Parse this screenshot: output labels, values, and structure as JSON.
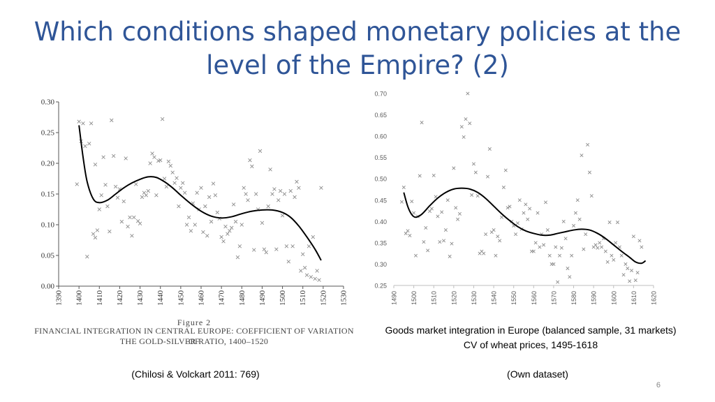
{
  "slide": {
    "title_line1": "Which conditions shaped monetary policies at the",
    "title_line2": "level of the Empire? (2)",
    "page_number": "6"
  },
  "left_figure": {
    "figure_number": "Figure 2",
    "caption_line1": "FINANCIAL INTEGRATION IN CENTRAL EUROPE: COEFFICIENT OF VARIATION OF",
    "caption_line2": "THE GOLD-SILVER RATIO, 1400–1520",
    "source": "(Chilosi & Volckart 2011: 769)"
  },
  "right_figure": {
    "caption_line1": "Goods market integration in Europe (balanced sample, 31 markets)",
    "caption_line2": "CV of wheat prices, 1495-1618",
    "source": "(Own dataset)"
  },
  "colors": {
    "title": "#2F5597",
    "curve": "#000000",
    "markers": "#8c8c8c"
  },
  "chart_data": [
    {
      "type": "scatter",
      "title": "Financial integration in Central Europe: coefficient of variation of the gold-silver ratio, 1400–1520",
      "xlim": [
        1390,
        1530
      ],
      "ylim": [
        0.0,
        0.3
      ],
      "xticks": [
        "1390",
        "1400",
        "1410",
        "1420",
        "1430",
        "1440",
        "1450",
        "1460",
        "1470",
        "1480",
        "1490",
        "1500",
        "1510",
        "1520",
        "1530"
      ],
      "yticks": [
        "0.00",
        "0.05",
        "0.10",
        "0.15",
        "0.20",
        "0.25",
        "0.30"
      ],
      "marker": "x",
      "points": [
        [
          1399,
          0.166
        ],
        [
          1400,
          0.268
        ],
        [
          1401,
          0.236
        ],
        [
          1402,
          0.265
        ],
        [
          1403,
          0.228
        ],
        [
          1404,
          0.048
        ],
        [
          1405,
          0.232
        ],
        [
          1406,
          0.265
        ],
        [
          1407,
          0.085
        ],
        [
          1408,
          0.079
        ],
        [
          1408,
          0.198
        ],
        [
          1409,
          0.091
        ],
        [
          1410,
          0.125
        ],
        [
          1411,
          0.148
        ],
        [
          1412,
          0.21
        ],
        [
          1413,
          0.165
        ],
        [
          1414,
          0.13
        ],
        [
          1415,
          0.089
        ],
        [
          1416,
          0.27
        ],
        [
          1417,
          0.212
        ],
        [
          1418,
          0.162
        ],
        [
          1419,
          0.144
        ],
        [
          1420,
          0.158
        ],
        [
          1421,
          0.105
        ],
        [
          1422,
          0.138
        ],
        [
          1423,
          0.208
        ],
        [
          1424,
          0.097
        ],
        [
          1425,
          0.112
        ],
        [
          1426,
          0.082
        ],
        [
          1427,
          0.112
        ],
        [
          1428,
          0.166
        ],
        [
          1429,
          0.106
        ],
        [
          1430,
          0.102
        ],
        [
          1431,
          0.145
        ],
        [
          1432,
          0.152
        ],
        [
          1433,
          0.148
        ],
        [
          1434,
          0.155
        ],
        [
          1435,
          0.2
        ],
        [
          1436,
          0.216
        ],
        [
          1437,
          0.21
        ],
        [
          1438,
          0.148
        ],
        [
          1439,
          0.204
        ],
        [
          1440,
          0.205
        ],
        [
          1441,
          0.272
        ],
        [
          1442,
          0.175
        ],
        [
          1443,
          0.162
        ],
        [
          1444,
          0.203
        ],
        [
          1445,
          0.196
        ],
        [
          1446,
          0.185
        ],
        [
          1447,
          0.168
        ],
        [
          1448,
          0.176
        ],
        [
          1449,
          0.13
        ],
        [
          1450,
          0.16
        ],
        [
          1451,
          0.168
        ],
        [
          1452,
          0.152
        ],
        [
          1453,
          0.1
        ],
        [
          1454,
          0.112
        ],
        [
          1455,
          0.09
        ],
        [
          1456,
          0.135
        ],
        [
          1457,
          0.1
        ],
        [
          1458,
          0.152
        ],
        [
          1459,
          0.125
        ],
        [
          1460,
          0.16
        ],
        [
          1461,
          0.088
        ],
        [
          1462,
          0.13
        ],
        [
          1463,
          0.082
        ],
        [
          1464,
          0.145
        ],
        [
          1465,
          0.105
        ],
        [
          1466,
          0.167
        ],
        [
          1467,
          0.148
        ],
        [
          1468,
          0.12
        ],
        [
          1469,
          0.11
        ],
        [
          1470,
          0.08
        ],
        [
          1471,
          0.073
        ],
        [
          1472,
          0.097
        ],
        [
          1473,
          0.085
        ],
        [
          1474,
          0.09
        ],
        [
          1475,
          0.095
        ],
        [
          1476,
          0.133
        ],
        [
          1477,
          0.105
        ],
        [
          1478,
          0.047
        ],
        [
          1479,
          0.065
        ],
        [
          1480,
          0.1
        ],
        [
          1481,
          0.16
        ],
        [
          1482,
          0.15
        ],
        [
          1483,
          0.14
        ],
        [
          1484,
          0.205
        ],
        [
          1485,
          0.195
        ],
        [
          1486,
          0.059
        ],
        [
          1487,
          0.15
        ],
        [
          1488,
          0.125
        ],
        [
          1489,
          0.22
        ],
        [
          1490,
          0.103
        ],
        [
          1491,
          0.06
        ],
        [
          1492,
          0.055
        ],
        [
          1493,
          0.13
        ],
        [
          1494,
          0.19
        ],
        [
          1495,
          0.15
        ],
        [
          1496,
          0.158
        ],
        [
          1497,
          0.06
        ],
        [
          1498,
          0.14
        ],
        [
          1499,
          0.155
        ],
        [
          1500,
          0.115
        ],
        [
          1501,
          0.15
        ],
        [
          1502,
          0.065
        ],
        [
          1503,
          0.04
        ],
        [
          1504,
          0.155
        ],
        [
          1505,
          0.065
        ],
        [
          1506,
          0.145
        ],
        [
          1507,
          0.17
        ],
        [
          1508,
          0.16
        ],
        [
          1509,
          0.025
        ],
        [
          1510,
          0.052
        ],
        [
          1511,
          0.03
        ],
        [
          1512,
          0.018
        ],
        [
          1513,
          0.065
        ],
        [
          1514,
          0.015
        ],
        [
          1515,
          0.08
        ],
        [
          1516,
          0.012
        ],
        [
          1517,
          0.025
        ],
        [
          1518,
          0.01
        ],
        [
          1519,
          0.16
        ]
      ],
      "fit_curve": [
        [
          1400,
          0.262
        ],
        [
          1402,
          0.21
        ],
        [
          1404,
          0.17
        ],
        [
          1407,
          0.142
        ],
        [
          1410,
          0.136
        ],
        [
          1414,
          0.14
        ],
        [
          1418,
          0.15
        ],
        [
          1422,
          0.16
        ],
        [
          1426,
          0.168
        ],
        [
          1430,
          0.174
        ],
        [
          1434,
          0.178
        ],
        [
          1438,
          0.177
        ],
        [
          1442,
          0.17
        ],
        [
          1446,
          0.16
        ],
        [
          1450,
          0.148
        ],
        [
          1455,
          0.134
        ],
        [
          1460,
          0.122
        ],
        [
          1465,
          0.114
        ],
        [
          1470,
          0.111
        ],
        [
          1475,
          0.113
        ],
        [
          1480,
          0.118
        ],
        [
          1485,
          0.122
        ],
        [
          1490,
          0.124
        ],
        [
          1495,
          0.124
        ],
        [
          1500,
          0.12
        ],
        [
          1504,
          0.112
        ],
        [
          1508,
          0.098
        ],
        [
          1512,
          0.08
        ],
        [
          1516,
          0.06
        ],
        [
          1519,
          0.042
        ]
      ]
    },
    {
      "type": "scatter",
      "title": "Goods market integration in Europe (balanced sample, 31 markets) CV of wheat prices, 1495-1618",
      "xlim": [
        1490,
        1620
      ],
      "ylim": [
        0.25,
        0.7
      ],
      "xticks": [
        "1490",
        "1500",
        "1510",
        "1520",
        "1530",
        "1540",
        "1550",
        "1560",
        "1570",
        "1580",
        "1590",
        "1600",
        "1610",
        "1620"
      ],
      "yticks": [
        "0.25",
        "0.30",
        "0.35",
        "0.40",
        "0.45",
        "0.50",
        "0.55",
        "0.60",
        "0.65",
        "0.70"
      ],
      "marker": "x",
      "points": [
        [
          1494,
          0.446
        ],
        [
          1495,
          0.48
        ],
        [
          1496,
          0.372
        ],
        [
          1497,
          0.378
        ],
        [
          1498,
          0.367
        ],
        [
          1499,
          0.447
        ],
        [
          1500,
          0.42
        ],
        [
          1501,
          0.32
        ],
        [
          1502,
          0.412
        ],
        [
          1503,
          0.507
        ],
        [
          1504,
          0.632
        ],
        [
          1505,
          0.352
        ],
        [
          1506,
          0.385
        ],
        [
          1507,
          0.332
        ],
        [
          1508,
          0.424
        ],
        [
          1509,
          0.43
        ],
        [
          1510,
          0.508
        ],
        [
          1511,
          0.458
        ],
        [
          1512,
          0.412
        ],
        [
          1513,
          0.352
        ],
        [
          1514,
          0.422
        ],
        [
          1515,
          0.355
        ],
        [
          1516,
          0.38
        ],
        [
          1517,
          0.45
        ],
        [
          1518,
          0.318
        ],
        [
          1519,
          0.348
        ],
        [
          1520,
          0.525
        ],
        [
          1521,
          0.432
        ],
        [
          1522,
          0.405
        ],
        [
          1523,
          0.418
        ],
        [
          1524,
          0.622
        ],
        [
          1525,
          0.598
        ],
        [
          1526,
          0.64
        ],
        [
          1527,
          0.7
        ],
        [
          1528,
          0.63
        ],
        [
          1529,
          0.462
        ],
        [
          1530,
          0.535
        ],
        [
          1531,
          0.515
        ],
        [
          1532,
          0.46
        ],
        [
          1533,
          0.325
        ],
        [
          1534,
          0.33
        ],
        [
          1535,
          0.325
        ],
        [
          1536,
          0.37
        ],
        [
          1537,
          0.505
        ],
        [
          1538,
          0.57
        ],
        [
          1539,
          0.375
        ],
        [
          1540,
          0.38
        ],
        [
          1541,
          0.32
        ],
        [
          1542,
          0.365
        ],
        [
          1543,
          0.355
        ],
        [
          1544,
          0.41
        ],
        [
          1545,
          0.48
        ],
        [
          1546,
          0.52
        ],
        [
          1547,
          0.432
        ],
        [
          1548,
          0.435
        ],
        [
          1549,
          0.4
        ],
        [
          1550,
          0.39
        ],
        [
          1551,
          0.37
        ],
        [
          1552,
          0.396
        ],
        [
          1553,
          0.45
        ],
        [
          1554,
          0.382
        ],
        [
          1555,
          0.42
        ],
        [
          1556,
          0.44
        ],
        [
          1557,
          0.405
        ],
        [
          1558,
          0.43
        ],
        [
          1559,
          0.33
        ],
        [
          1560,
          0.33
        ],
        [
          1561,
          0.35
        ],
        [
          1562,
          0.42
        ],
        [
          1563,
          0.34
        ],
        [
          1564,
          0.37
        ],
        [
          1565,
          0.345
        ],
        [
          1566,
          0.445
        ],
        [
          1567,
          0.38
        ],
        [
          1568,
          0.32
        ],
        [
          1569,
          0.3
        ],
        [
          1570,
          0.3
        ],
        [
          1571,
          0.34
        ],
        [
          1572,
          0.258
        ],
        [
          1573,
          0.32
        ],
        [
          1574,
          0.338
        ],
        [
          1575,
          0.4
        ],
        [
          1576,
          0.36
        ],
        [
          1577,
          0.29
        ],
        [
          1578,
          0.27
        ],
        [
          1579,
          0.32
        ],
        [
          1580,
          0.39
        ],
        [
          1581,
          0.42
        ],
        [
          1582,
          0.45
        ],
        [
          1583,
          0.405
        ],
        [
          1584,
          0.555
        ],
        [
          1585,
          0.335
        ],
        [
          1586,
          0.37
        ],
        [
          1587,
          0.58
        ],
        [
          1588,
          0.515
        ],
        [
          1589,
          0.46
        ],
        [
          1590,
          0.34
        ],
        [
          1591,
          0.345
        ],
        [
          1592,
          0.338
        ],
        [
          1593,
          0.35
        ],
        [
          1594,
          0.34
        ],
        [
          1595,
          0.36
        ],
        [
          1596,
          0.33
        ],
        [
          1597,
          0.305
        ],
        [
          1598,
          0.398
        ],
        [
          1599,
          0.32
        ],
        [
          1600,
          0.31
        ],
        [
          1601,
          0.35
        ],
        [
          1602,
          0.398
        ],
        [
          1603,
          0.34
        ],
        [
          1604,
          0.32
        ],
        [
          1605,
          0.275
        ],
        [
          1606,
          0.3
        ],
        [
          1607,
          0.29
        ],
        [
          1608,
          0.26
        ],
        [
          1609,
          0.285
        ],
        [
          1610,
          0.365
        ],
        [
          1611,
          0.262
        ],
        [
          1612,
          0.28
        ],
        [
          1613,
          0.355
        ],
        [
          1614,
          0.34
        ]
      ],
      "fit_curve": [
        [
          1495,
          0.468
        ],
        [
          1497,
          0.435
        ],
        [
          1499,
          0.416
        ],
        [
          1501,
          0.41
        ],
        [
          1504,
          0.417
        ],
        [
          1508,
          0.437
        ],
        [
          1512,
          0.455
        ],
        [
          1516,
          0.468
        ],
        [
          1520,
          0.476
        ],
        [
          1524,
          0.478
        ],
        [
          1528,
          0.476
        ],
        [
          1532,
          0.468
        ],
        [
          1536,
          0.454
        ],
        [
          1540,
          0.436
        ],
        [
          1544,
          0.418
        ],
        [
          1548,
          0.402
        ],
        [
          1552,
          0.388
        ],
        [
          1556,
          0.378
        ],
        [
          1560,
          0.372
        ],
        [
          1564,
          0.368
        ],
        [
          1568,
          0.368
        ],
        [
          1572,
          0.372
        ],
        [
          1576,
          0.376
        ],
        [
          1580,
          0.38
        ],
        [
          1584,
          0.382
        ],
        [
          1588,
          0.38
        ],
        [
          1592,
          0.372
        ],
        [
          1596,
          0.36
        ],
        [
          1600,
          0.345
        ],
        [
          1604,
          0.33
        ],
        [
          1608,
          0.316
        ],
        [
          1611,
          0.305
        ],
        [
          1614,
          0.302
        ],
        [
          1616,
          0.308
        ]
      ]
    }
  ]
}
